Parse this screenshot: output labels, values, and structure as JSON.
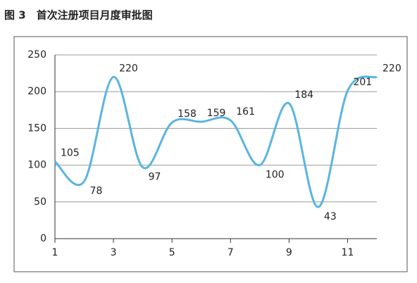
{
  "chart_data": {
    "type": "line",
    "title": "图 3　首次注册项目月度审批图",
    "x": [
      1,
      2,
      3,
      4,
      5,
      6,
      7,
      8,
      9,
      10,
      11,
      12
    ],
    "series": [
      {
        "color": "#5ab4e0",
        "values": [
          105,
          78,
          220,
          97,
          158,
          159,
          161,
          100,
          184,
          43,
          201,
          220
        ]
      }
    ],
    "xlim": [
      1,
      12
    ],
    "xticks": [
      1,
      3,
      5,
      7,
      9,
      11
    ],
    "ylim": [
      0,
      250
    ],
    "yticks": [
      0,
      50,
      100,
      150,
      200,
      250
    ],
    "grid": true,
    "smooth": true
  }
}
